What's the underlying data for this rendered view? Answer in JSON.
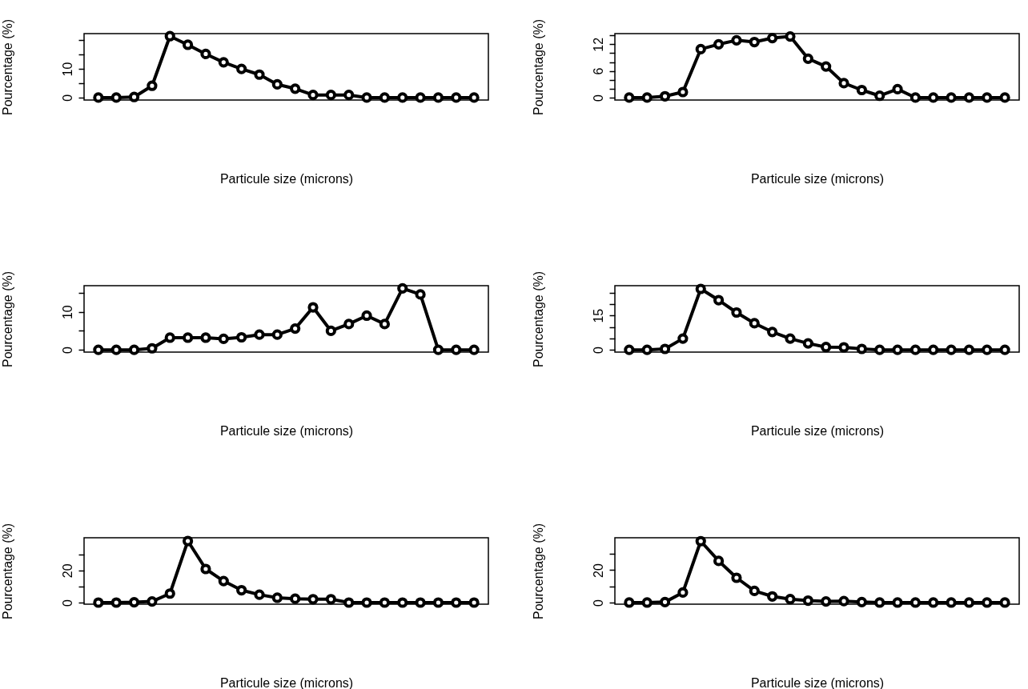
{
  "chart_data": [
    {
      "type": "line",
      "xlabel": "Particule size (microns)",
      "ylabel": "Pourcentage (%)",
      "tick_labels": "y",
      "marker": "circle",
      "line_style": "solid",
      "categories": [
        null,
        null,
        null,
        null,
        null,
        null,
        null,
        null,
        null,
        null,
        null,
        null,
        null,
        null,
        null,
        null,
        null,
        null,
        null,
        null,
        null,
        null
      ],
      "ylim": [
        -0.86,
        22.3
      ],
      "yticks": [
        0,
        {
          "value": 5,
          "label": null
        },
        10,
        {
          "value": 15,
          "label": null
        },
        {
          "value": 20,
          "label": null
        }
      ],
      "series": [
        {
          "color": "#000000",
          "values": [
            0,
            0,
            0.2,
            4.1,
            21.4,
            18.4,
            15.2,
            12.3,
            10.0,
            8.0,
            4.6,
            3.1,
            0.9,
            0.9,
            0.9,
            0,
            0,
            0,
            0,
            0,
            0,
            0
          ]
        }
      ]
    },
    {
      "type": "line",
      "xlabel": "Particule size (microns)",
      "ylabel": "Pourcentage (%)",
      "tick_labels": "y",
      "marker": "circle",
      "line_style": "solid",
      "categories": [
        null,
        null,
        null,
        null,
        null,
        null,
        null,
        null,
        null,
        null,
        null,
        null,
        null,
        null,
        null,
        null,
        null,
        null,
        null,
        null,
        null,
        null
      ],
      "ylim": [
        -0.55,
        14.4
      ],
      "yticks": [
        0,
        {
          "value": 2,
          "label": null
        },
        {
          "value": 4,
          "label": null
        },
        6,
        {
          "value": 8,
          "label": null
        },
        {
          "value": 10,
          "label": null
        },
        12,
        {
          "value": 14,
          "label": null
        }
      ],
      "series": [
        {
          "color": "#000000",
          "values": [
            0,
            0,
            0.3,
            1.25,
            10.9,
            12.0,
            12.9,
            12.5,
            13.4,
            13.75,
            8.75,
            7.0,
            3.25,
            1.7,
            0.4,
            1.9,
            0,
            0,
            0,
            0,
            0,
            0
          ]
        }
      ]
    },
    {
      "type": "line",
      "xlabel": "Particule size (microns)",
      "ylabel": "Pourcentage (%)",
      "tick_labels": "y",
      "marker": "circle",
      "line_style": "solid",
      "categories": [
        null,
        null,
        null,
        null,
        null,
        null,
        null,
        null,
        null,
        null,
        null,
        null,
        null,
        null,
        null,
        null,
        null,
        null,
        null,
        null,
        null,
        null
      ],
      "ylim": [
        -0.6,
        16.9
      ],
      "yticks": [
        0,
        {
          "value": 5,
          "label": null
        },
        10,
        {
          "value": 15,
          "label": null
        }
      ],
      "series": [
        {
          "color": "#000000",
          "values": [
            0,
            0,
            0,
            0.4,
            3.2,
            3.2,
            3.2,
            2.9,
            3.3,
            4.0,
            4.0,
            5.6,
            11.2,
            5.0,
            6.8,
            9.0,
            6.8,
            16.2,
            14.6,
            0,
            0,
            0
          ]
        }
      ]
    },
    {
      "type": "line",
      "xlabel": "Particule size (microns)",
      "ylabel": "Pourcentage (%)",
      "tick_labels": "y",
      "marker": "circle",
      "line_style": "solid",
      "categories": [
        null,
        null,
        null,
        null,
        null,
        null,
        null,
        null,
        null,
        null,
        null,
        null,
        null,
        null,
        null,
        null,
        null,
        null,
        null,
        null,
        null,
        null
      ],
      "ylim": [
        -1.0,
        28.0
      ],
      "yticks": [
        0,
        {
          "value": 5,
          "label": null
        },
        {
          "value": 10,
          "label": null
        },
        15,
        {
          "value": 20,
          "label": null
        },
        {
          "value": 25,
          "label": null
        }
      ],
      "series": [
        {
          "color": "#000000",
          "values": [
            0,
            0,
            0.4,
            4.9,
            26.6,
            21.7,
            16.3,
            11.6,
            7.8,
            4.9,
            2.8,
            1.2,
            1.1,
            0.4,
            0,
            0,
            0,
            0,
            0,
            0,
            0,
            0
          ]
        }
      ]
    },
    {
      "type": "line",
      "xlabel": "Particule size (microns)",
      "ylabel": "Pourcentage (%)",
      "tick_labels": "y",
      "marker": "circle",
      "line_style": "solid",
      "categories": [
        null,
        null,
        null,
        null,
        null,
        null,
        null,
        null,
        null,
        null,
        null,
        null,
        null,
        null,
        null,
        null,
        null,
        null,
        null,
        null,
        null,
        null
      ],
      "ylim": [
        -1.0,
        40.3
      ],
      "yticks": [
        0,
        {
          "value": 10,
          "label": null
        },
        20,
        {
          "value": 30,
          "label": null
        }
      ],
      "series": [
        {
          "color": "#000000",
          "values": [
            0,
            0,
            0.2,
            0.7,
            5.6,
            38.3,
            20.9,
            13.4,
            7.7,
            4.9,
            3.0,
            2.4,
            2.1,
            2.1,
            0,
            0,
            0,
            0,
            0,
            0,
            0,
            0
          ]
        }
      ]
    },
    {
      "type": "line",
      "xlabel": "Particule size (microns)",
      "ylabel": "Pourcentage (%)",
      "tick_labels": "y",
      "marker": "circle",
      "line_style": "solid",
      "categories": [
        null,
        null,
        null,
        null,
        null,
        null,
        null,
        null,
        null,
        null,
        null,
        null,
        null,
        null,
        null,
        null,
        null,
        null,
        null,
        null,
        null,
        null
      ],
      "ylim": [
        -1.0,
        40.0
      ],
      "yticks": [
        0,
        {
          "value": 10,
          "label": null
        },
        20,
        {
          "value": 30,
          "label": null
        }
      ],
      "series": [
        {
          "color": "#000000",
          "values": [
            0,
            0,
            0.3,
            6.2,
            37.9,
            25.7,
            15.3,
            7.2,
            3.8,
            2.1,
            1.2,
            0.7,
            0.9,
            0.3,
            0,
            0,
            0,
            0,
            0,
            0,
            0,
            0
          ]
        }
      ]
    }
  ]
}
